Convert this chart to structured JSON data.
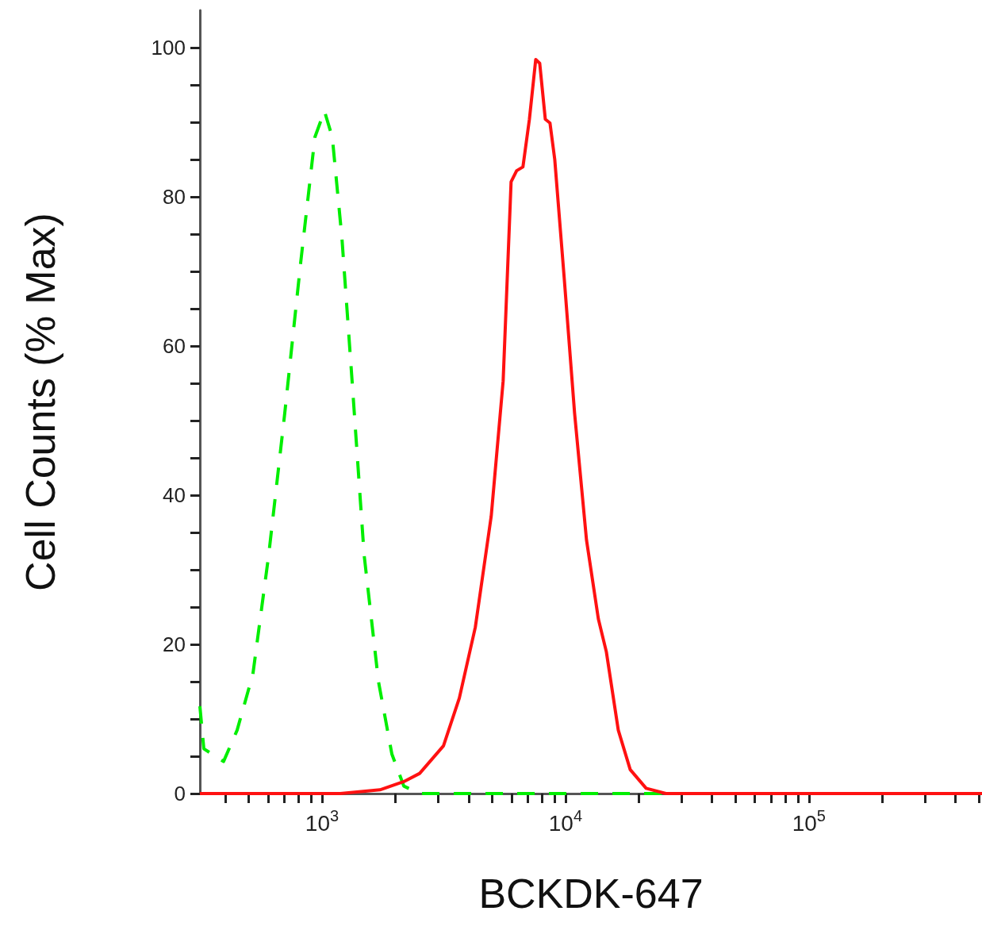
{
  "chart_data": {
    "type": "line",
    "xlabel": "BCKDK-647",
    "ylabel": "Cell Counts (% Max)",
    "log": "x",
    "marker": "none",
    "grid": false,
    "xlim": [
      315,
      514000
    ],
    "ylim": [
      0,
      105
    ],
    "xticks": [
      {
        "value": 400,
        "label": null
      },
      {
        "value": 500,
        "label": null
      },
      {
        "value": 600,
        "label": null
      },
      {
        "value": 700,
        "label": null
      },
      {
        "value": 800,
        "label": null
      },
      {
        "value": 900,
        "label": null
      },
      {
        "value": 1000,
        "label": "10$^{3}$"
      },
      {
        "value": 2000,
        "label": null
      },
      {
        "value": 3000,
        "label": null
      },
      {
        "value": 4000,
        "label": null
      },
      {
        "value": 5000,
        "label": null
      },
      {
        "value": 6000,
        "label": null
      },
      {
        "value": 7000,
        "label": null
      },
      {
        "value": 8000,
        "label": null
      },
      {
        "value": 9000,
        "label": null
      },
      {
        "value": 10000,
        "label": "10$^{4}$"
      },
      {
        "value": 20000,
        "label": null
      },
      {
        "value": 30000,
        "label": null
      },
      {
        "value": 40000,
        "label": null
      },
      {
        "value": 50000,
        "label": null
      },
      {
        "value": 60000,
        "label": null
      },
      {
        "value": 70000,
        "label": null
      },
      {
        "value": 80000,
        "label": null
      },
      {
        "value": 90000,
        "label": null
      },
      {
        "value": 100000,
        "label": "10$^{5}$"
      },
      {
        "value": 200000,
        "label": null
      },
      {
        "value": 300000,
        "label": null
      },
      {
        "value": 400000,
        "label": null
      },
      {
        "value": 500000,
        "label": null
      }
    ],
    "yticks": [
      0,
      {
        "value": 5,
        "label": null
      },
      {
        "value": 10,
        "label": null
      },
      {
        "value": 15,
        "label": null
      },
      20,
      {
        "value": 25,
        "label": null
      },
      {
        "value": 30,
        "label": null
      },
      {
        "value": 35,
        "label": null
      },
      40,
      {
        "value": 45,
        "label": null
      },
      {
        "value": 50,
        "label": null
      },
      {
        "value": 55,
        "label": null
      },
      60,
      {
        "value": 65,
        "label": null
      },
      {
        "value": 70,
        "label": null
      },
      {
        "value": 75,
        "label": null
      },
      80,
      {
        "value": 85,
        "label": null
      },
      {
        "value": 90,
        "label": null
      },
      {
        "value": 95,
        "label": null
      },
      100
    ],
    "series": [
      {
        "color": "#00ee00",
        "line_style": "dashed",
        "x": [
          315,
          327,
          394,
          448,
          520,
          604,
          703,
          816,
          935,
          1023,
          1102,
          1207,
          1331,
          1489,
          1706,
          1936,
          2168,
          2518,
          19140,
          514000
        ],
        "values": [
          11.7,
          6,
          4.3,
          8.5,
          16,
          32,
          51,
          71,
          88,
          91.5,
          88,
          74.5,
          55,
          32,
          15,
          5.3,
          1,
          0,
          0,
          0
        ]
      },
      {
        "color": "#ff1111",
        "line_style": "solid",
        "x": [
          315,
          1189,
          1730,
          2168,
          2518,
          3154,
          3665,
          4263,
          4955,
          5546,
          5979,
          6300,
          6687,
          7110,
          7548,
          7838,
          8263,
          8637,
          9036,
          9887,
          10900,
          12200,
          13650,
          14720,
          16480,
          18450,
          21440,
          25860,
          514000
        ],
        "values": [
          0,
          0,
          0.5,
          1.6,
          2.7,
          6.4,
          12.8,
          22.3,
          37.2,
          55.3,
          82,
          83.5,
          84,
          90.4,
          98.4,
          97.9,
          90.4,
          89.9,
          85,
          69,
          51,
          34,
          23.4,
          19,
          8.5,
          3.2,
          0.7,
          0,
          0
        ]
      }
    ]
  }
}
